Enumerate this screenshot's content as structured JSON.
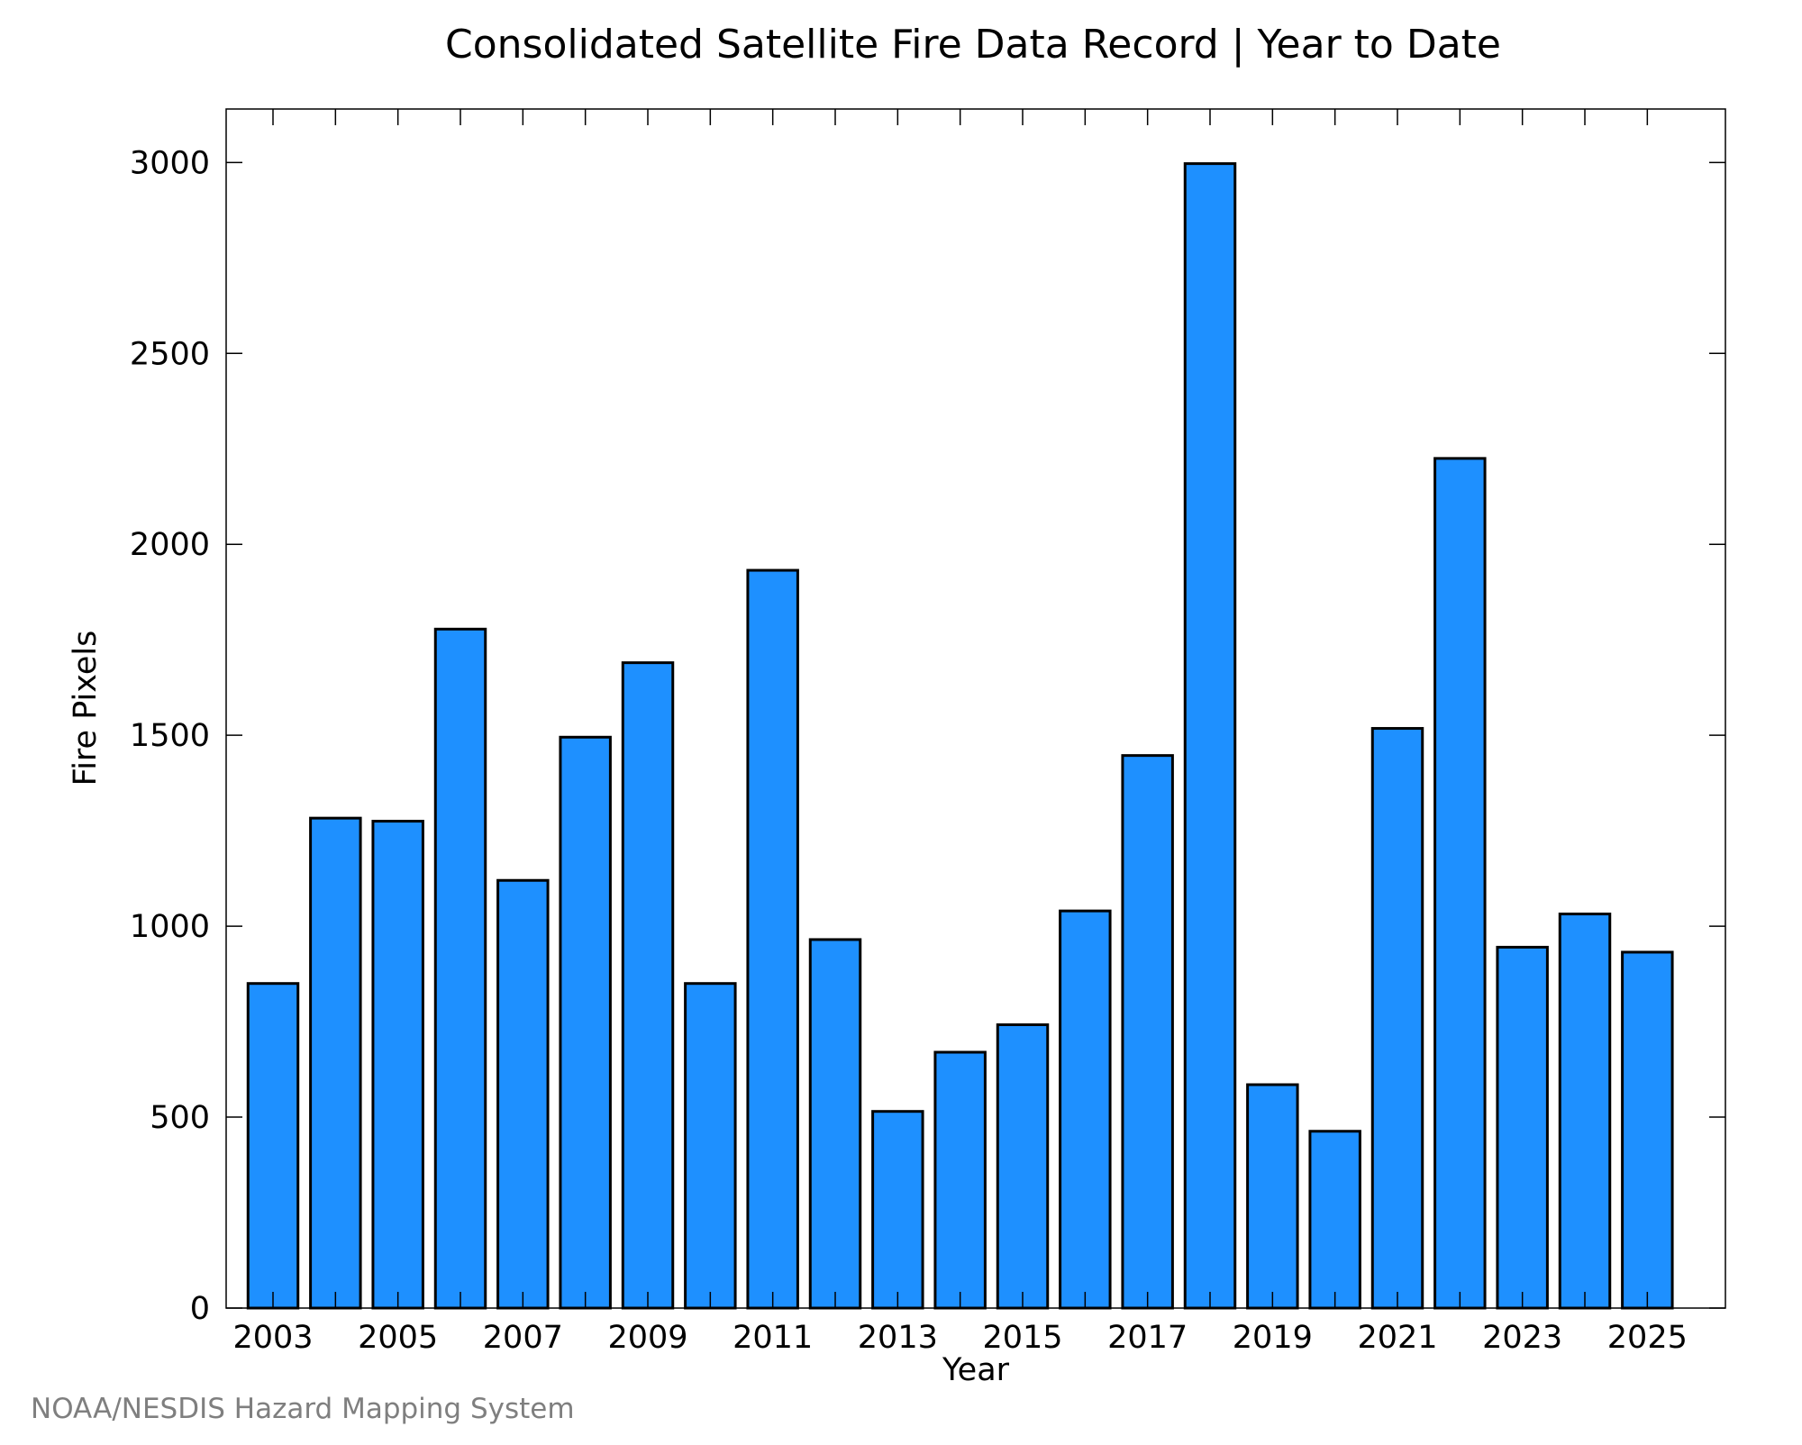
{
  "chart_data": {
    "type": "bar",
    "title": "Consolidated Satellite Fire Data Record | Year to Date",
    "xlabel": "Year",
    "ylabel": "Fire Pixels",
    "categories": [
      "2003",
      "2004",
      "2005",
      "2006",
      "2007",
      "2008",
      "2009",
      "2010",
      "2011",
      "2012",
      "2013",
      "2014",
      "2015",
      "2016",
      "2017",
      "2018",
      "2019",
      "2020",
      "2021",
      "2022",
      "2023",
      "2024",
      "2025"
    ],
    "values": [
      850,
      1283,
      1275,
      1778,
      1120,
      1495,
      1690,
      850,
      1932,
      965,
      515,
      670,
      742,
      1040,
      1447,
      2997,
      585,
      463,
      1518,
      2225,
      945,
      1032,
      932
    ],
    "x_tick_labels": [
      "2003",
      "2005",
      "2007",
      "2009",
      "2011",
      "2013",
      "2015",
      "2017",
      "2019",
      "2021",
      "2023",
      "2025"
    ],
    "y_tick_labels": [
      "0",
      "500",
      "1000",
      "1500",
      "2000",
      "2500",
      "3000"
    ],
    "y_ticks": [
      0,
      500,
      1000,
      1500,
      2000,
      2500,
      3000
    ],
    "ylim": [
      0,
      3140
    ],
    "xlim": [
      2002.25,
      2026.25
    ],
    "bar_color": "#1e90ff",
    "grid": false,
    "legend": "none"
  },
  "source": "NOAA/NESDIS Hazard Mapping System"
}
